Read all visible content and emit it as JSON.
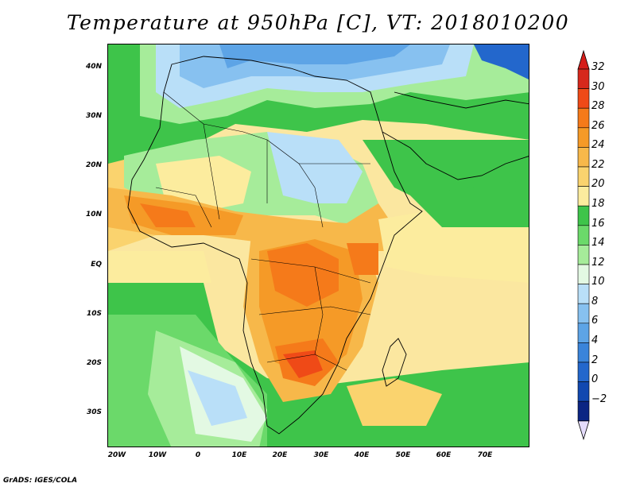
{
  "title": "Temperature at 950hPa [C], VT: 2018010200",
  "credit": "GrADS: IGES/COLA",
  "axes": {
    "y_labels": [
      "40N",
      "30N",
      "20N",
      "10N",
      "EQ",
      "10S",
      "20S",
      "30S"
    ],
    "x_labels": [
      "20W",
      "10W",
      "0",
      "10E",
      "20E",
      "30E",
      "40E",
      "50E",
      "60E",
      "70E"
    ]
  },
  "colorbar": {
    "labels": [
      "32",
      "30",
      "28",
      "26",
      "24",
      "22",
      "20",
      "18",
      "16",
      "14",
      "12",
      "10",
      "8",
      "6",
      "4",
      "2",
      "0",
      "−2"
    ],
    "colors": [
      "#d6281c",
      "#ef4a17",
      "#f57a1a",
      "#f59a27",
      "#f7b84a",
      "#fad36e",
      "#fcec9e",
      "#3ec44a",
      "#6bd96a",
      "#a6ec9a",
      "#e3f9e3",
      "#b9dff8",
      "#87c1f0",
      "#5da4e6",
      "#3a84da",
      "#2367cc",
      "#1148b0",
      "#0b2583"
    ],
    "top_triangle": "#d51c19",
    "bottom_triangle": "#e4dcfb"
  }
}
